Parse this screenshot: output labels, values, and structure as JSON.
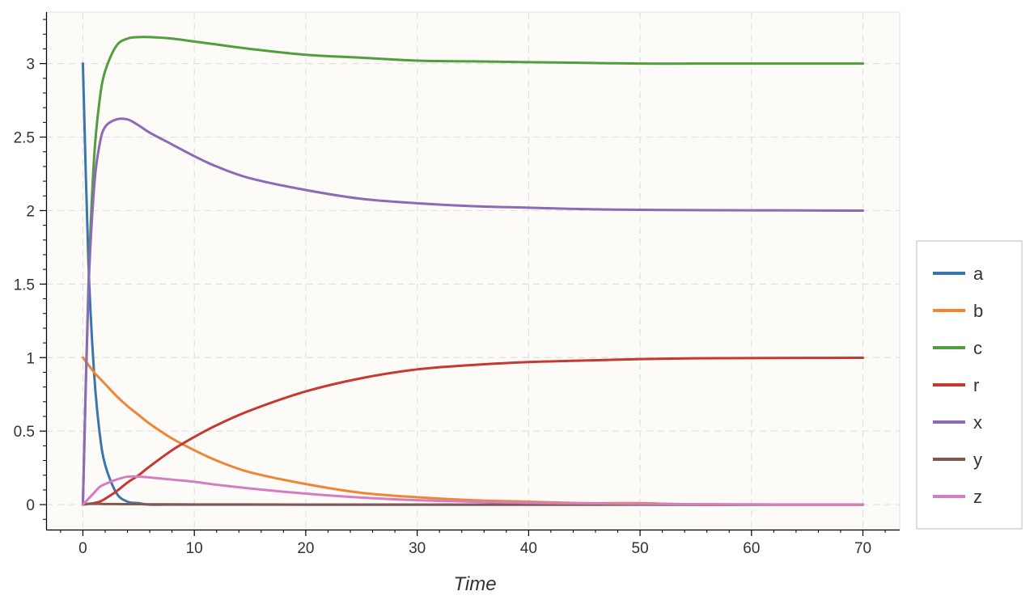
{
  "chart_data": {
    "type": "line",
    "title": "",
    "xlabel": "Time",
    "ylabel": "",
    "xlim": [
      -3.3,
      73.3
    ],
    "ylim": [
      -0.17,
      3.35
    ],
    "x_ticks": [
      0,
      10,
      20,
      30,
      40,
      50,
      60,
      70
    ],
    "x_tick_labels": [
      "0",
      "10",
      "20",
      "30",
      "40",
      "50",
      "60",
      "70"
    ],
    "y_ticks": [
      0,
      0.5,
      1,
      1.5,
      2,
      2.5,
      3
    ],
    "y_tick_labels": [
      "0",
      "0.5",
      "1",
      "1.5",
      "2",
      "2.5",
      "3"
    ],
    "grid": true,
    "legend_position": "right",
    "background_color": "#fcfbf8",
    "x": [
      0,
      0.5,
      1,
      1.5,
      2,
      3,
      4,
      5,
      6,
      8,
      10,
      12,
      15,
      20,
      25,
      30,
      35,
      40,
      45,
      50,
      55,
      60,
      65,
      70
    ],
    "series": [
      {
        "name": "a",
        "color": "#3a76ae",
        "values": [
          3,
          1.64,
          0.9,
          0.49,
          0.27,
          0.08,
          0.02,
          0.01,
          0,
          0,
          0,
          0,
          0,
          0,
          0,
          0,
          0,
          0,
          0,
          0,
          0,
          0,
          0,
          0
        ]
      },
      {
        "name": "b",
        "color": "#ef8636",
        "values": [
          1,
          0.95,
          0.9,
          0.86,
          0.82,
          0.74,
          0.67,
          0.61,
          0.55,
          0.45,
          0.37,
          0.3,
          0.22,
          0.14,
          0.08,
          0.05,
          0.03,
          0.02,
          0.01,
          0.01,
          0,
          0,
          0,
          0
        ]
      },
      {
        "name": "c",
        "color": "#519e3e",
        "values": [
          0,
          1.5,
          2.35,
          2.75,
          2.95,
          3.12,
          3.17,
          3.18,
          3.18,
          3.17,
          3.15,
          3.13,
          3.1,
          3.06,
          3.04,
          3.02,
          3.015,
          3.01,
          3.005,
          3.0,
          3.0,
          3.0,
          3.0,
          3.0
        ]
      },
      {
        "name": "r",
        "color": "#c53932",
        "values": [
          0,
          0.005,
          0.01,
          0.02,
          0.04,
          0.09,
          0.15,
          0.2,
          0.26,
          0.37,
          0.46,
          0.54,
          0.64,
          0.77,
          0.86,
          0.92,
          0.95,
          0.97,
          0.98,
          0.99,
          0.995,
          0.997,
          0.998,
          0.999
        ]
      },
      {
        "name": "x",
        "color": "#8d69b8",
        "values": [
          0,
          1.45,
          2.15,
          2.45,
          2.57,
          2.62,
          2.62,
          2.58,
          2.53,
          2.45,
          2.37,
          2.3,
          2.22,
          2.14,
          2.08,
          2.05,
          2.03,
          2.02,
          2.01,
          2.005,
          2.003,
          2.002,
          2.001,
          2.0
        ]
      },
      {
        "name": "y",
        "color": "#84584e",
        "values": [
          0,
          0.005,
          0.005,
          0.005,
          0.004,
          0.004,
          0.003,
          0.003,
          0.002,
          0.002,
          0.001,
          0.001,
          0.001,
          0,
          0,
          0,
          0,
          0,
          0,
          0,
          0,
          0,
          0,
          0
        ]
      },
      {
        "name": "z",
        "color": "#d57dbf",
        "values": [
          0,
          0.04,
          0.08,
          0.12,
          0.14,
          0.17,
          0.19,
          0.19,
          0.185,
          0.17,
          0.155,
          0.135,
          0.11,
          0.075,
          0.048,
          0.03,
          0.02,
          0.012,
          0.008,
          0.005,
          0.003,
          0.002,
          0.001,
          0.001
        ]
      }
    ]
  }
}
